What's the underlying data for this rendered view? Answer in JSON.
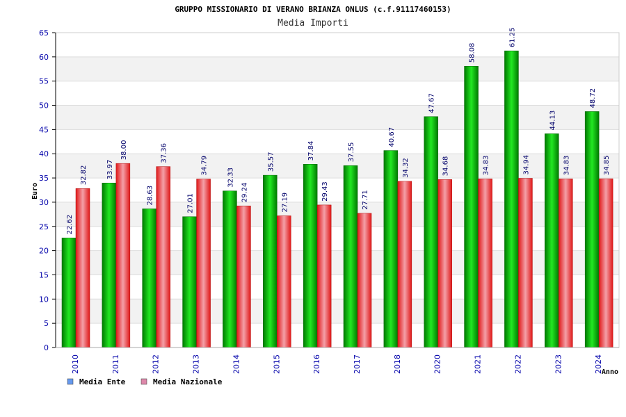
{
  "chart_data": {
    "type": "bar",
    "title": "GRUPPO MISSIONARIO DI VERANO BRIANZA ONLUS (c.f.91117460153)",
    "subtitle": "Media Importi",
    "xlabel": "Anno",
    "ylabel": "Euro",
    "ylim": [
      0,
      65
    ],
    "ytick_step": 5,
    "grid": true,
    "legend_position": "bottom-left",
    "categories": [
      "2010",
      "2011",
      "2012",
      "2013",
      "2014",
      "2015",
      "2016",
      "2017",
      "2018",
      "2020",
      "2021",
      "2022",
      "2023",
      "2024"
    ],
    "series": [
      {
        "name": "Media Ente",
        "color": "#00c000",
        "legend_color": "#6699ee",
        "values": [
          22.62,
          33.97,
          28.63,
          27.01,
          32.33,
          35.57,
          37.84,
          37.55,
          40.67,
          47.67,
          58.08,
          61.25,
          44.13,
          48.72
        ],
        "labels": [
          "22.62",
          "33.97",
          "28.63",
          "27.01",
          "32.33",
          "35.57",
          "37.84",
          "37.55",
          "40.67",
          "47.67",
          "58.08",
          "61.25",
          "44.13",
          "48.72"
        ]
      },
      {
        "name": "Media Nazionale",
        "color": "#ee2020",
        "legend_color": "#dd88aa",
        "values": [
          32.82,
          38.0,
          37.36,
          34.79,
          29.24,
          27.19,
          29.43,
          27.71,
          34.32,
          34.68,
          34.83,
          34.94,
          34.83,
          34.85
        ],
        "labels": [
          "32.82",
          "38.00",
          "37.36",
          "34.79",
          "29.24",
          "27.19",
          "29.43",
          "27.71",
          "34.32",
          "34.68",
          "34.83",
          "34.94",
          "34.83",
          "34.85"
        ]
      }
    ]
  }
}
